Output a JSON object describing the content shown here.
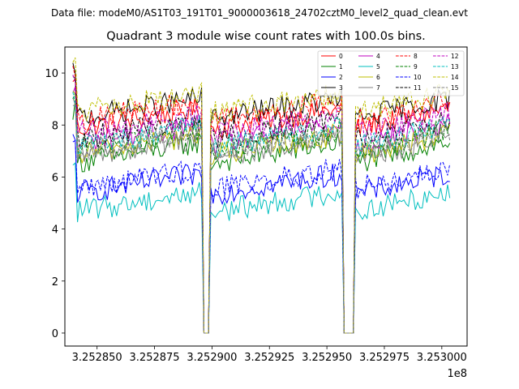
{
  "figure": {
    "suptitle": "Data file: modeM0/AS1T03_191T01_9000003618_24702cztM0_level2_quad_clean.evt"
  },
  "chart_data": {
    "type": "line",
    "title": "Quadrant 3 module wise count rates with 100.0s bins.",
    "xlabel": "",
    "ylabel": "",
    "x_offset_label": "1e8",
    "xlim": [
      3.252836,
      3.253011
    ],
    "ylim": [
      -0.5,
      11.0
    ],
    "x_ticks": [
      3.25285,
      3.252875,
      3.2529,
      3.252925,
      3.25295,
      3.252975,
      3.253
    ],
    "x_tick_labels": [
      "3.252850",
      "3.252875",
      "3.252900",
      "3.252925",
      "3.252950",
      "3.252975",
      "3.253000"
    ],
    "y_ticks": [
      0,
      2,
      4,
      6,
      8,
      10
    ],
    "y_tick_labels": [
      "0",
      "2",
      "4",
      "6",
      "8",
      "10"
    ],
    "x_range_data": [
      3.2528395,
      3.2530035
    ],
    "gaps": [
      [
        3.2528965,
        3.2528995
      ],
      [
        3.2529575,
        3.2529625
      ]
    ],
    "legend_location": "upper right",
    "legend_columns": 4,
    "series": [
      {
        "name": "0",
        "color": "#ff0000",
        "dash": "solid",
        "level": 8.3
      },
      {
        "name": "1",
        "color": "#008000",
        "dash": "solid",
        "level": 7.0
      },
      {
        "name": "2",
        "color": "#0000ff",
        "dash": "solid",
        "level": 5.8
      },
      {
        "name": "3",
        "color": "#000000",
        "dash": "solid",
        "level": 8.7
      },
      {
        "name": "4",
        "color": "#bf00bf",
        "dash": "solid",
        "level": 7.7
      },
      {
        "name": "5",
        "color": "#00bfbf",
        "dash": "solid",
        "level": 5.1
      },
      {
        "name": "6",
        "color": "#bfbf00",
        "dash": "solid",
        "level": 7.3
      },
      {
        "name": "7",
        "color": "#808080",
        "dash": "solid",
        "level": 7.2
      },
      {
        "name": "8",
        "color": "#ff0000",
        "dash": "dashed",
        "level": 8.6
      },
      {
        "name": "9",
        "color": "#008000",
        "dash": "dashed",
        "level": 7.5
      },
      {
        "name": "10",
        "color": "#0000ff",
        "dash": "dashed",
        "level": 6.0
      },
      {
        "name": "11",
        "color": "#000000",
        "dash": "dashed",
        "level": 7.9
      },
      {
        "name": "12",
        "color": "#bf00bf",
        "dash": "dashed",
        "level": 8.1
      },
      {
        "name": "13",
        "color": "#00bfbf",
        "dash": "dashed",
        "level": 7.6
      },
      {
        "name": "14",
        "color": "#bfbf00",
        "dash": "dashed",
        "level": 8.9
      },
      {
        "name": "15",
        "color": "#808080",
        "dash": "dashed",
        "level": 7.4
      }
    ]
  }
}
